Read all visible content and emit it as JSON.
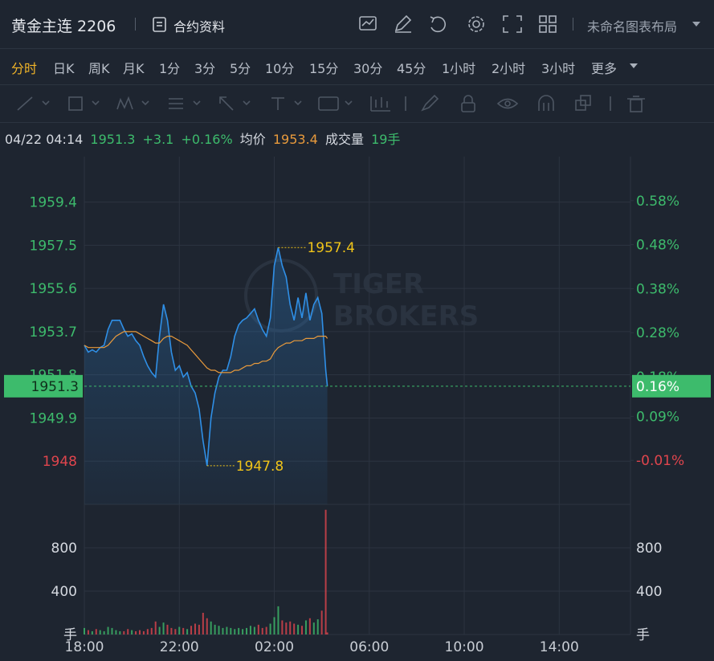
{
  "header": {
    "symbol": "黄金主连 2206",
    "contract_info": "合约资料",
    "layout_name": "未命名图表布局"
  },
  "periods": {
    "items": [
      "分时",
      "日K",
      "周K",
      "月K",
      "1分",
      "3分",
      "5分",
      "10分",
      "15分",
      "30分",
      "45分",
      "1小时",
      "2小时",
      "3小时",
      "更多"
    ],
    "active": 0
  },
  "quote": {
    "time": "04/22 04:14",
    "price": "1951.3",
    "change": "+3.1",
    "change_pct": "+0.16%",
    "avg_label": "均价",
    "avg": "1953.4",
    "volume_label": "成交量",
    "volume": "19手"
  },
  "watermark": [
    "TIGER",
    "BROKERS"
  ],
  "chart_data": {
    "type": "line",
    "x": [
      "18:00",
      "18:10",
      "18:20",
      "18:30",
      "18:40",
      "18:50",
      "19:00",
      "19:10",
      "19:20",
      "19:30",
      "19:40",
      "19:50",
      "20:00",
      "20:10",
      "20:20",
      "20:30",
      "20:40",
      "20:50",
      "21:00",
      "21:10",
      "21:20",
      "21:30",
      "21:40",
      "21:50",
      "22:00",
      "22:10",
      "22:20",
      "22:30",
      "22:40",
      "22:50",
      "23:00",
      "23:10",
      "23:20",
      "23:30",
      "23:40",
      "23:50",
      "00:00",
      "00:10",
      "00:20",
      "00:30",
      "00:40",
      "00:50",
      "01:00",
      "01:10",
      "01:20",
      "01:30",
      "01:40",
      "01:50",
      "02:00",
      "02:10",
      "02:20",
      "02:30",
      "02:40",
      "02:50",
      "03:00",
      "03:10",
      "03:20",
      "03:30",
      "03:40",
      "03:50",
      "04:00",
      "04:10",
      "04:14"
    ],
    "series": [
      {
        "color": "#2f8fe6",
        "values": [
          1953.1,
          1952.8,
          1952.9,
          1952.8,
          1953.0,
          1953.1,
          1953.8,
          1954.2,
          1954.2,
          1954.2,
          1953.8,
          1953.5,
          1953.6,
          1953.3,
          1953.1,
          1952.6,
          1952.2,
          1951.9,
          1951.7,
          1953.5,
          1954.9,
          1954.2,
          1952.8,
          1952.0,
          1952.2,
          1951.7,
          1951.9,
          1951.3,
          1951.0,
          1950.3,
          1948.9,
          1947.8,
          1949.9,
          1951.0,
          1951.7,
          1952.0,
          1952.0,
          1952.6,
          1953.5,
          1954.0,
          1954.2,
          1954.3,
          1954.5,
          1954.7,
          1954.2,
          1953.8,
          1953.5,
          1954.3,
          1956.6,
          1957.4,
          1956.6,
          1956.1,
          1954.9,
          1954.2,
          1955.2,
          1954.3,
          1955.4,
          1954.2,
          1954.9,
          1955.2,
          1954.5,
          1952.0,
          1951.3
        ]
      },
      {
        "color": "#e89a3c",
        "values": [
          1953.1,
          1953.0,
          1953.0,
          1953.0,
          1953.0,
          1953.0,
          1953.1,
          1953.3,
          1953.5,
          1953.6,
          1953.7,
          1953.7,
          1953.7,
          1953.7,
          1953.6,
          1953.5,
          1953.4,
          1953.3,
          1953.2,
          1953.2,
          1953.4,
          1953.5,
          1953.5,
          1953.4,
          1953.3,
          1953.2,
          1953.1,
          1952.9,
          1952.7,
          1952.5,
          1952.3,
          1952.1,
          1952.0,
          1952.0,
          1951.9,
          1951.9,
          1951.9,
          1951.9,
          1952.0,
          1952.0,
          1952.1,
          1952.2,
          1952.2,
          1952.3,
          1952.3,
          1952.4,
          1952.4,
          1952.5,
          1952.8,
          1953.0,
          1953.1,
          1953.2,
          1953.2,
          1953.3,
          1953.3,
          1953.3,
          1953.4,
          1953.4,
          1953.4,
          1953.5,
          1953.5,
          1953.5,
          1953.4
        ]
      }
    ],
    "xlim": [
      "18:00",
      "17:00"
    ],
    "xticks": [
      "18:00",
      "22:00",
      "02:00",
      "06:00",
      "10:00",
      "14:00"
    ],
    "ylim": [
      1946.1,
      1961.4
    ],
    "yticks": [
      1959.4,
      1957.5,
      1955.6,
      1953.7,
      1951.8,
      1949.9,
      1948.0
    ],
    "y2lim": [
      -0.11,
      0.68
    ],
    "y2ticks": [
      {
        "value": 0.58,
        "label": "0.58%"
      },
      {
        "value": 0.48,
        "label": "0.48%"
      },
      {
        "value": 0.38,
        "label": "0.38%"
      },
      {
        "value": 0.28,
        "label": "0.28%"
      },
      {
        "value": 0.18,
        "label": "0.18%"
      },
      {
        "value": 0.09,
        "label": "0.09%"
      },
      {
        "value": -0.01,
        "label": "-0.01%"
      }
    ],
    "up_color": "#3dbb6c",
    "down_color": "#e0454d",
    "grid": true,
    "current": {
      "price": 1951.3,
      "change_pct": {
        "value": 0.16,
        "label": "0.16%"
      }
    },
    "annotations": [
      {
        "x": "02:10",
        "value": 1957.4
      },
      {
        "x": "23:10",
        "value": 1947.8
      }
    ],
    "volume": {
      "unit": "手",
      "ylim": [
        0,
        1200
      ],
      "yticks": [
        400,
        800
      ],
      "values": [
        60,
        40,
        30,
        50,
        40,
        30,
        70,
        60,
        40,
        30,
        30,
        50,
        40,
        30,
        40,
        30,
        50,
        60,
        120,
        70,
        110,
        90,
        60,
        50,
        70,
        60,
        50,
        80,
        100,
        90,
        200,
        150,
        120,
        90,
        80,
        60,
        70,
        60,
        50,
        60,
        50,
        60,
        80,
        70,
        90,
        60,
        70,
        100,
        160,
        260,
        130,
        110,
        120,
        100,
        90,
        80,
        130,
        150,
        110,
        140,
        220,
        1150,
        19
      ]
    }
  }
}
